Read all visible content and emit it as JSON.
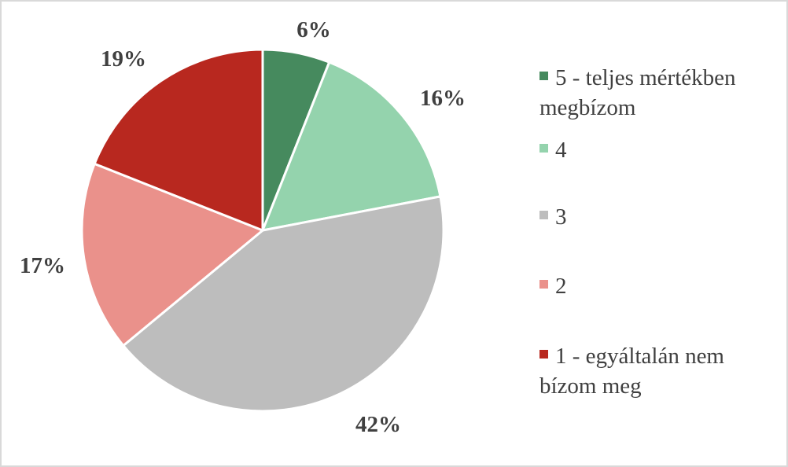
{
  "chart_data": {
    "type": "pie",
    "categories": [
      "5 - teljes mértékben megbízom",
      "4",
      "3",
      "2",
      "1 - egyáltalán nem bízom meg"
    ],
    "values": [
      6,
      16,
      42,
      17,
      19
    ],
    "labels": [
      "6%",
      "16%",
      "42%",
      "17%",
      "19%"
    ],
    "colors": [
      "#468a5e",
      "#94d3ad",
      "#bdbdbd",
      "#ea918b",
      "#b8281f"
    ],
    "legend_position": "right",
    "start_angle": "12 o'clock, clockwise"
  },
  "legend": {
    "items": [
      {
        "label_line1": "5 - teljes mértékben",
        "label_line2": "megbízom",
        "color": "#468a5e"
      },
      {
        "label_line1": "4",
        "label_line2": "",
        "color": "#94d3ad"
      },
      {
        "label_line1": "3",
        "label_line2": "",
        "color": "#bdbdbd"
      },
      {
        "label_line1": "2",
        "label_line2": "",
        "color": "#ea918b"
      },
      {
        "label_line1": "1 - egyáltalán nem",
        "label_line2": "bízom meg",
        "color": "#b8281f"
      }
    ]
  }
}
